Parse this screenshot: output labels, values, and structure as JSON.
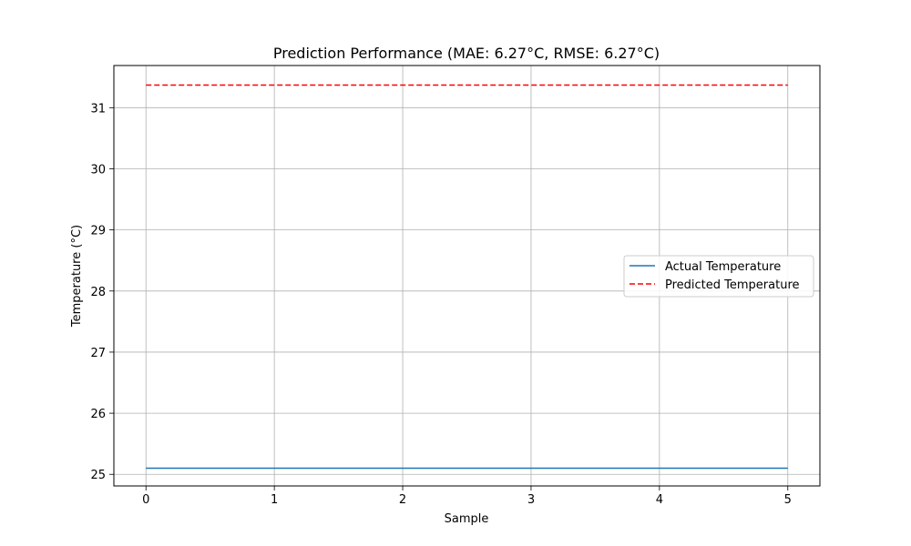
{
  "chart_data": {
    "type": "line",
    "title": "Prediction Performance (MAE: 6.27°C, RMSE: 6.27°C)",
    "xlabel": "Sample",
    "ylabel": "Temperature (°C)",
    "x": [
      0,
      1,
      2,
      3,
      4,
      5
    ],
    "xticks": [
      0,
      1,
      2,
      3,
      4,
      5
    ],
    "yticks": [
      25,
      26,
      27,
      28,
      29,
      30,
      31
    ],
    "xlim": [
      -0.25,
      5.25
    ],
    "ylim": [
      24.81,
      31.69
    ],
    "grid": true,
    "legend_position": "center-right",
    "series": [
      {
        "name": "Actual Temperature",
        "values": [
          25.1,
          25.1,
          25.1,
          25.1,
          25.1,
          25.1
        ],
        "color": "#1f77b4",
        "style": "solid"
      },
      {
        "name": "Predicted Temperature",
        "values": [
          31.37,
          31.37,
          31.37,
          31.37,
          31.37,
          31.37
        ],
        "color": "#ff0000",
        "style": "dashed"
      }
    ]
  }
}
